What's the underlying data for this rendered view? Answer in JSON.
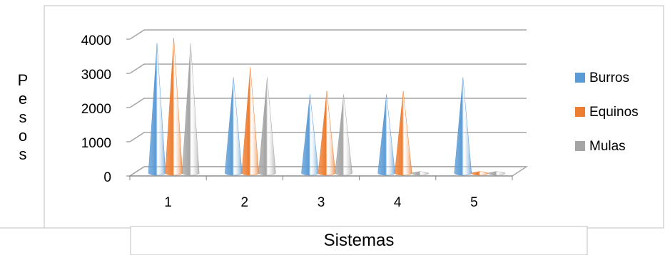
{
  "chart_data": {
    "type": "bar",
    "style": "3d-cone",
    "categories": [
      "1",
      "2",
      "3",
      "4",
      "5"
    ],
    "series": [
      {
        "name": "Burros",
        "values": [
          3800,
          2800,
          2300,
          2300,
          2800
        ]
      },
      {
        "name": "Equinos",
        "values": [
          3950,
          3100,
          2400,
          2400,
          50
        ]
      },
      {
        "name": "Mulas",
        "values": [
          3800,
          2800,
          2300,
          50,
          50
        ]
      }
    ],
    "xlabel": "Sistemas",
    "ylabel": "Pesos",
    "ylim": [
      0,
      4000
    ],
    "yticks": [
      "0",
      "1000",
      "2000",
      "3000",
      "4000"
    ],
    "grid": true,
    "legend_position": "right",
    "colors": {
      "Burros": "#5b9bd5",
      "Equinos": "#ed7d31",
      "Mulas": "#a5a5a5"
    }
  }
}
